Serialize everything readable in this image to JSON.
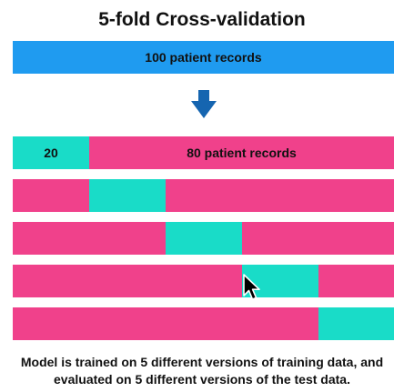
{
  "title": "5-fold Cross-validation",
  "full_dataset_label": "100 patient records",
  "folds": [
    {
      "test_label": "20",
      "train_label": "80 patient records",
      "test_index": 0
    },
    {
      "test_label": "",
      "train_label": "",
      "test_index": 1
    },
    {
      "test_label": "",
      "train_label": "",
      "test_index": 2
    },
    {
      "test_label": "",
      "train_label": "",
      "test_index": 3
    },
    {
      "test_label": "",
      "train_label": "",
      "test_index": 4
    }
  ],
  "caption": {
    "line1": "Model is trained on 5 different versions of training data, and",
    "line2": "evaluated on 5 different versions of the test data."
  },
  "colors": {
    "full_bar": "#1f9bf0",
    "train": "#f0418b",
    "test": "#19dcc8",
    "arrow": "#1565b0"
  },
  "icons": {
    "arrow": "down-arrow-icon",
    "cursor": "mouse-pointer-icon"
  }
}
